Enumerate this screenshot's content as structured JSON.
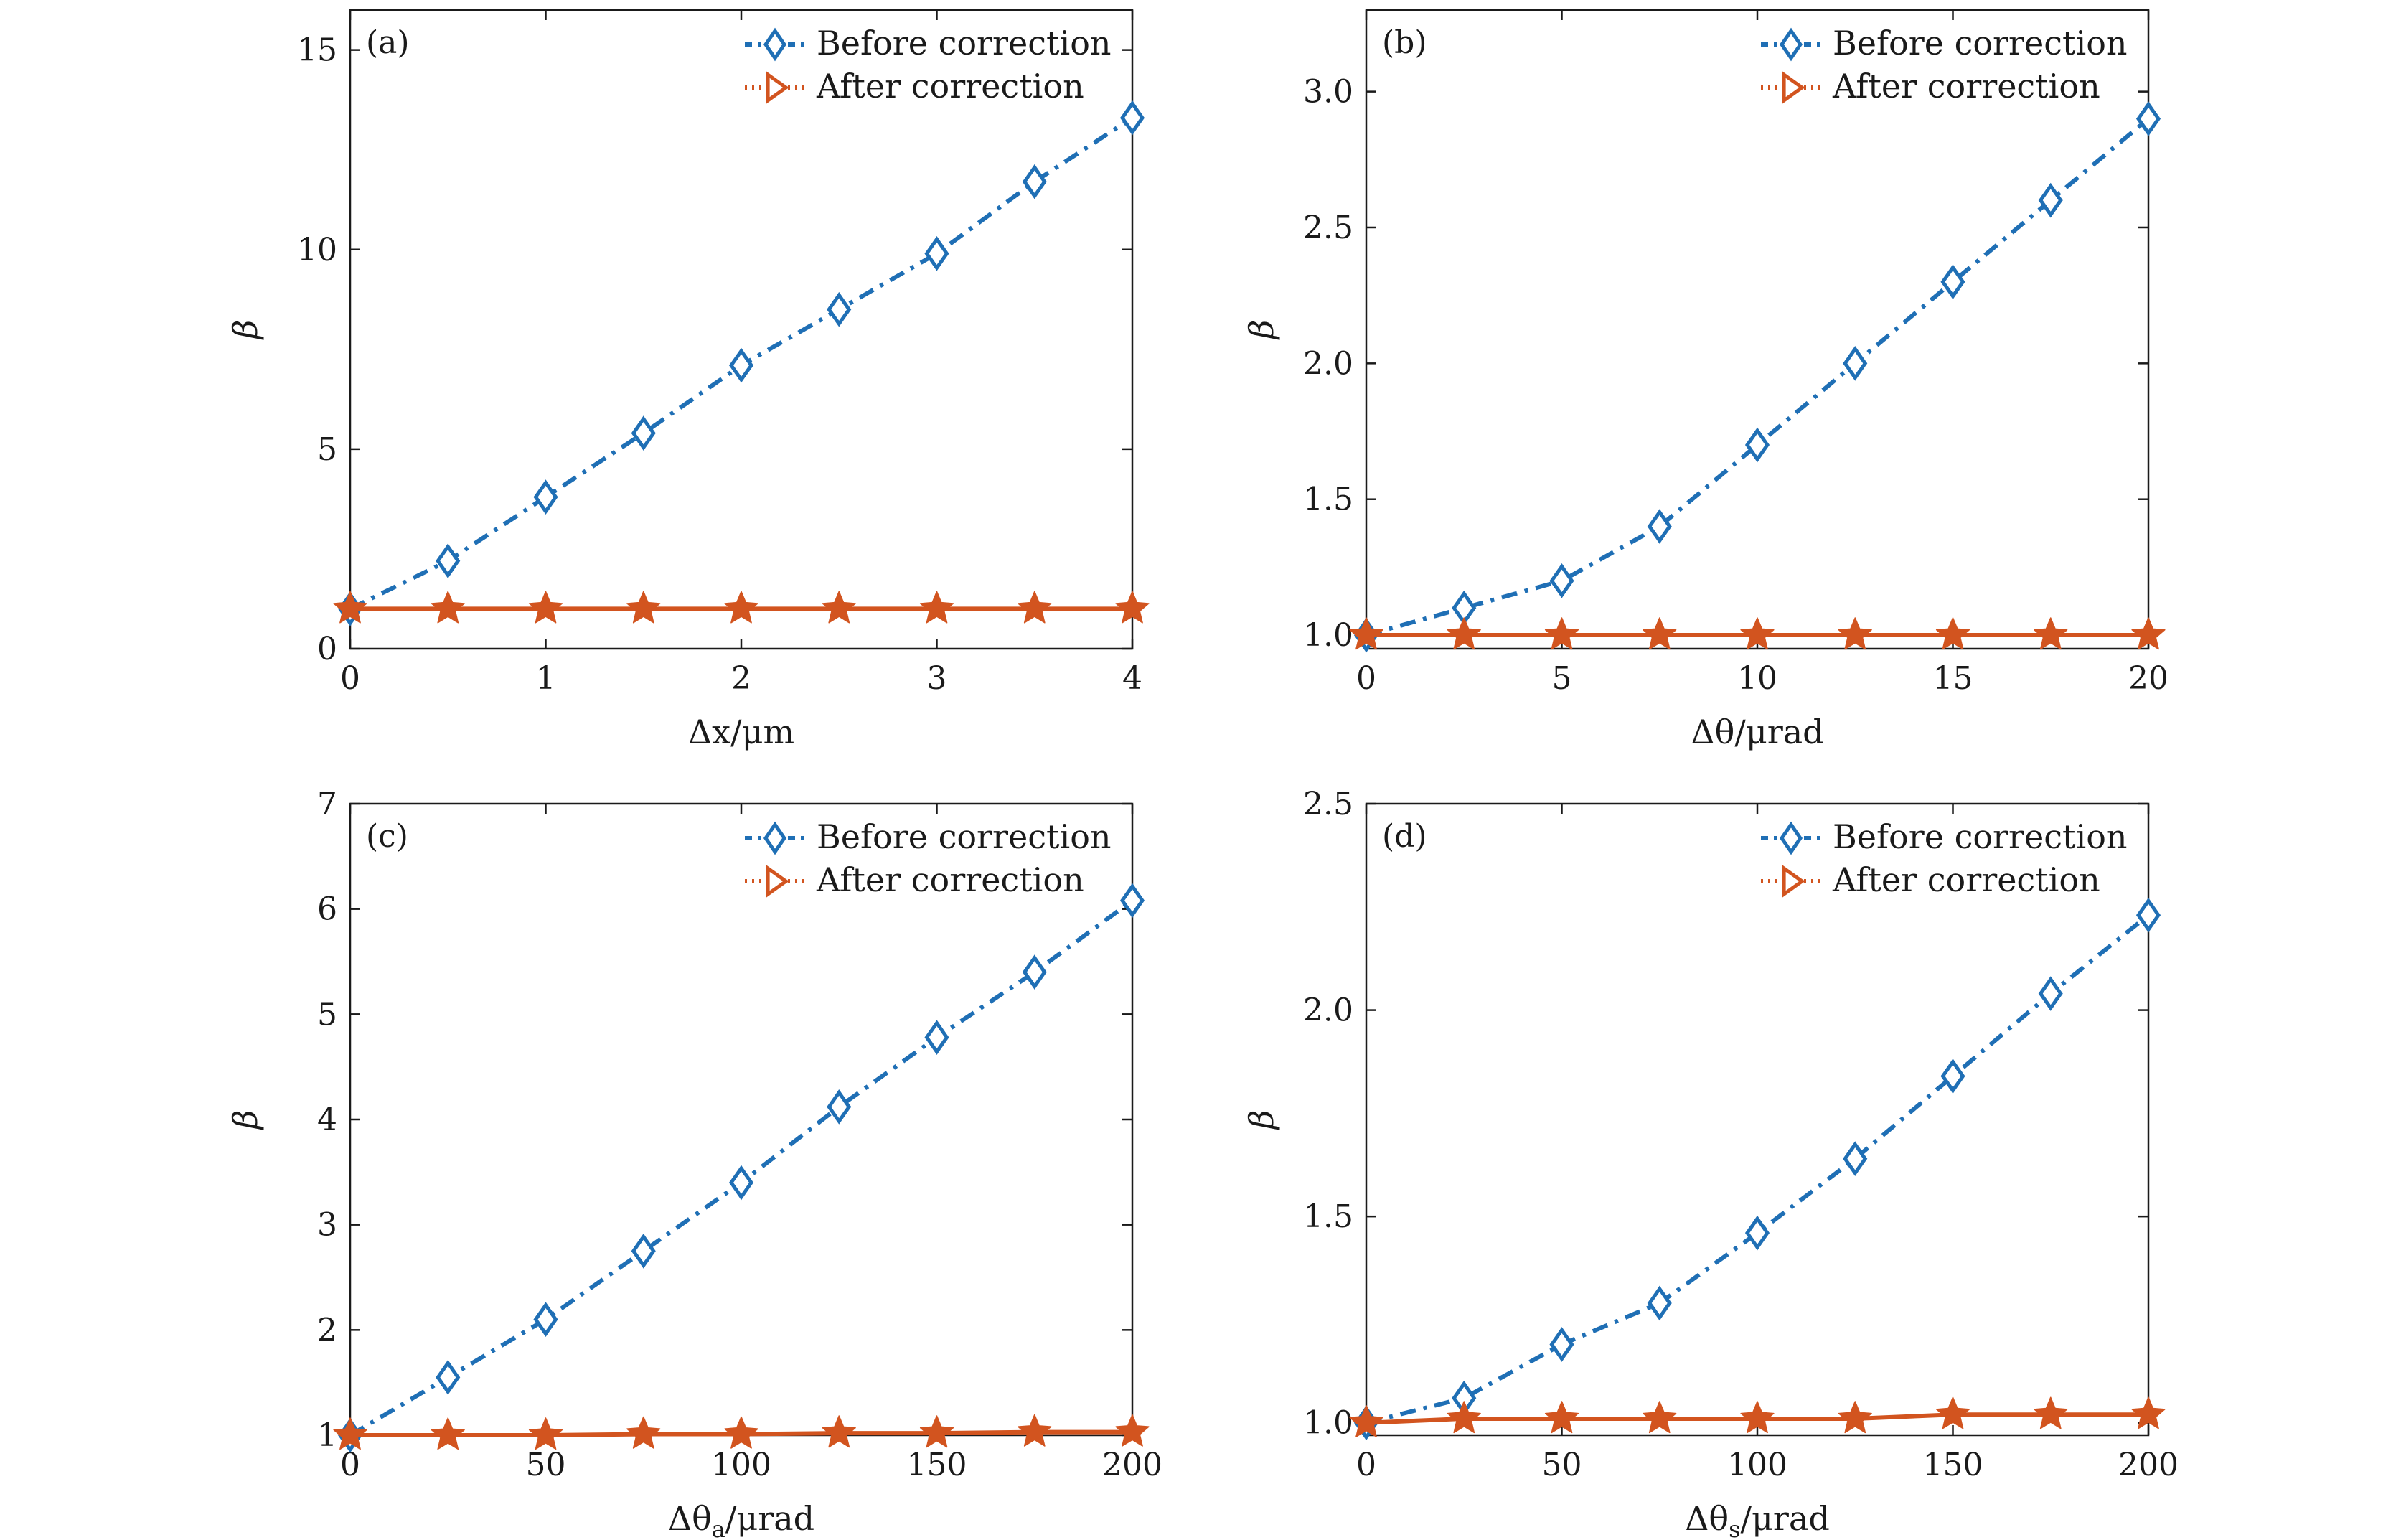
{
  "colors": {
    "before": "#1f6fb5",
    "after": "#d2541f",
    "axis": "#1a1a1a"
  },
  "chart_data": [
    {
      "type": "line",
      "panel_label": "(a)",
      "xlabel": "Δx/μm",
      "ylabel": "β",
      "xlim": [
        0,
        4
      ],
      "ylim": [
        0,
        16
      ],
      "xticks": [
        0,
        1,
        2,
        3,
        4
      ],
      "xtick_labels": [
        "0",
        "1",
        "2",
        "3",
        "4"
      ],
      "yticks": [
        0,
        5,
        10,
        15
      ],
      "ytick_labels": [
        "0",
        "5",
        "10",
        "15"
      ],
      "legend_position": "top-right",
      "x": [
        0,
        0.5,
        1,
        1.5,
        2,
        2.5,
        3,
        3.5,
        4
      ],
      "series": [
        {
          "name": "Before correction",
          "marker": "diamond",
          "style": "dash-dot",
          "values": [
            1.0,
            2.2,
            3.8,
            5.4,
            7.1,
            8.5,
            9.9,
            11.7,
            13.3
          ]
        },
        {
          "name": "After correction",
          "marker": "star",
          "style": "solid",
          "values": [
            1.0,
            1.0,
            1.0,
            1.0,
            1.0,
            1.0,
            1.0,
            1.0,
            1.0
          ]
        }
      ]
    },
    {
      "type": "line",
      "panel_label": "(b)",
      "xlabel": "Δθ/μrad",
      "ylabel": "β",
      "xlim": [
        0,
        20
      ],
      "ylim": [
        0.95,
        3.3
      ],
      "xticks": [
        0,
        5,
        10,
        15,
        20
      ],
      "xtick_labels": [
        "0",
        "5",
        "10",
        "15",
        "20"
      ],
      "yticks": [
        1.0,
        1.5,
        2.0,
        2.5,
        3.0
      ],
      "ytick_labels": [
        "1.0",
        "1.5",
        "2.0",
        "2.5",
        "3.0"
      ],
      "legend_position": "top-right",
      "x": [
        0,
        2.5,
        5,
        7.5,
        10,
        12.5,
        15,
        17.5,
        20
      ],
      "series": [
        {
          "name": "Before correction",
          "marker": "diamond",
          "style": "dash-dot",
          "values": [
            1.0,
            1.1,
            1.2,
            1.4,
            1.7,
            2.0,
            2.3,
            2.6,
            2.9
          ]
        },
        {
          "name": "After correction",
          "marker": "star",
          "style": "solid",
          "values": [
            1.0,
            1.0,
            1.0,
            1.0,
            1.0,
            1.0,
            1.0,
            1.0,
            1.0
          ]
        }
      ]
    },
    {
      "type": "line",
      "panel_label": "(c)",
      "xlabel": "Δθa/μrad",
      "xlabel_parts": [
        "Δθ",
        "a",
        "/μrad"
      ],
      "ylabel": "β",
      "xlim": [
        0,
        200
      ],
      "ylim": [
        1,
        7
      ],
      "xticks": [
        0,
        50,
        100,
        150,
        200
      ],
      "xtick_labels": [
        "0",
        "50",
        "100",
        "150",
        "200"
      ],
      "yticks": [
        1,
        2,
        3,
        4,
        5,
        6,
        7
      ],
      "ytick_labels": [
        "1",
        "2",
        "3",
        "4",
        "5",
        "6",
        "7"
      ],
      "legend_position": "top-right",
      "x": [
        0,
        25,
        50,
        75,
        100,
        125,
        150,
        175,
        200
      ],
      "series": [
        {
          "name": "Before correction",
          "marker": "diamond",
          "style": "dash-dot",
          "values": [
            1.0,
            1.55,
            2.1,
            2.75,
            3.4,
            4.12,
            4.78,
            5.4,
            6.08
          ]
        },
        {
          "name": "After correction",
          "marker": "star",
          "style": "solid",
          "values": [
            1.0,
            1.0,
            1.0,
            1.01,
            1.01,
            1.02,
            1.02,
            1.03,
            1.03
          ]
        }
      ]
    },
    {
      "type": "line",
      "panel_label": "(d)",
      "xlabel": "Δθs/μrad",
      "xlabel_parts": [
        "Δθ",
        "s",
        "/μrad"
      ],
      "ylabel": "β",
      "xlim": [
        0,
        200
      ],
      "ylim": [
        0.97,
        2.5
      ],
      "xticks": [
        0,
        50,
        100,
        150,
        200
      ],
      "xtick_labels": [
        "0",
        "50",
        "100",
        "150",
        "200"
      ],
      "yticks": [
        1.0,
        1.5,
        2.0,
        2.5
      ],
      "ytick_labels": [
        "1.0",
        "1.5",
        "2.0",
        "2.5"
      ],
      "legend_position": "top-right",
      "x": [
        0,
        25,
        50,
        75,
        100,
        125,
        150,
        175,
        200
      ],
      "series": [
        {
          "name": "Before correction",
          "marker": "diamond",
          "style": "dash-dot",
          "values": [
            1.0,
            1.06,
            1.19,
            1.29,
            1.46,
            1.64,
            1.84,
            2.04,
            2.23
          ]
        },
        {
          "name": "After correction",
          "marker": "star",
          "style": "solid",
          "values": [
            1.0,
            1.01,
            1.01,
            1.01,
            1.01,
            1.01,
            1.02,
            1.02,
            1.02
          ]
        }
      ]
    }
  ]
}
